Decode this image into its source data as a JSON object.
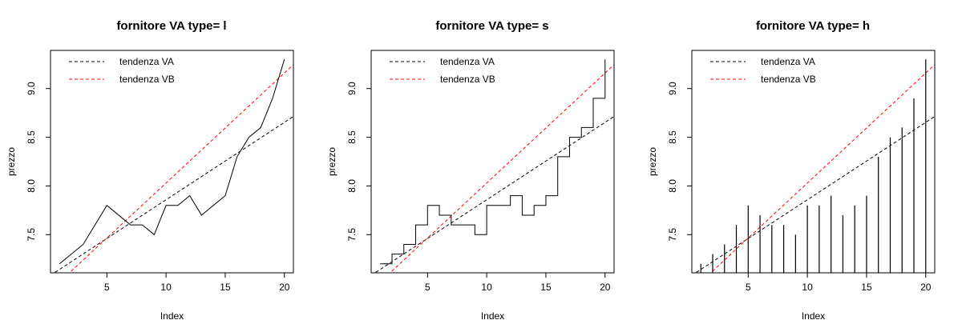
{
  "chart_data": [
    {
      "type": "line",
      "plot_type": "l",
      "title": "fornitore  VA  type= l",
      "xlabel": "Index",
      "ylabel": "prezzo",
      "xlim": [
        0.24,
        20.76
      ],
      "ylim": [
        7.108,
        9.392
      ],
      "x_ticks": [
        5,
        10,
        15,
        20
      ],
      "y_ticks": [
        7.5,
        8.0,
        8.5,
        9.0
      ],
      "y_tick_labels": [
        "7.5",
        "8.0",
        "8.5",
        "9.0"
      ],
      "grid": false,
      "legend_position": "top-left",
      "series": [
        {
          "x": [
            1,
            2,
            3,
            4,
            5,
            6,
            7,
            8,
            9,
            10,
            11,
            12,
            13,
            14,
            15,
            16,
            17,
            18,
            19,
            20
          ],
          "values": [
            7.2,
            7.3,
            7.4,
            7.6,
            7.8,
            7.7,
            7.6,
            7.6,
            7.5,
            7.8,
            7.8,
            7.9,
            7.7,
            7.8,
            7.9,
            8.3,
            8.5,
            8.6,
            8.9,
            9.3
          ],
          "color": "#000000"
        }
      ],
      "trend_lines": [
        {
          "name": "tendenza VA",
          "intercept": 7.063,
          "slope": 0.0795,
          "color": "#000000",
          "dashed": true
        },
        {
          "name": "tendenza VB",
          "intercept": 6.9,
          "slope": 0.113,
          "color": "#ff0000",
          "dashed": true
        }
      ]
    },
    {
      "type": "line",
      "plot_type": "s",
      "title": "fornitore  VA  type= s",
      "xlabel": "Index",
      "ylabel": "prezzo",
      "xlim": [
        0.24,
        20.76
      ],
      "ylim": [
        7.108,
        9.392
      ],
      "x_ticks": [
        5,
        10,
        15,
        20
      ],
      "y_ticks": [
        7.5,
        8.0,
        8.5,
        9.0
      ],
      "y_tick_labels": [
        "7.5",
        "8.0",
        "8.5",
        "9.0"
      ],
      "grid": false,
      "legend_position": "top-left",
      "series": [
        {
          "x": [
            1,
            2,
            3,
            4,
            5,
            6,
            7,
            8,
            9,
            10,
            11,
            12,
            13,
            14,
            15,
            16,
            17,
            18,
            19,
            20
          ],
          "values": [
            7.2,
            7.3,
            7.4,
            7.6,
            7.8,
            7.7,
            7.6,
            7.6,
            7.5,
            7.8,
            7.8,
            7.9,
            7.7,
            7.8,
            7.9,
            8.3,
            8.5,
            8.6,
            8.9,
            9.3
          ],
          "color": "#000000"
        }
      ],
      "trend_lines": [
        {
          "name": "tendenza VA",
          "intercept": 7.063,
          "slope": 0.0795,
          "color": "#000000",
          "dashed": true
        },
        {
          "name": "tendenza VB",
          "intercept": 6.9,
          "slope": 0.113,
          "color": "#ff0000",
          "dashed": true
        }
      ]
    },
    {
      "type": "bar",
      "plot_type": "h",
      "title": "fornitore  VA  type= h",
      "xlabel": "Index",
      "ylabel": "prezzo",
      "xlim": [
        0.24,
        20.76
      ],
      "ylim": [
        7.108,
        9.392
      ],
      "x_ticks": [
        5,
        10,
        15,
        20
      ],
      "y_ticks": [
        7.5,
        8.0,
        8.5,
        9.0
      ],
      "y_tick_labels": [
        "7.5",
        "8.0",
        "8.5",
        "9.0"
      ],
      "grid": false,
      "legend_position": "top-left",
      "series": [
        {
          "x": [
            1,
            2,
            3,
            4,
            5,
            6,
            7,
            8,
            9,
            10,
            11,
            12,
            13,
            14,
            15,
            16,
            17,
            18,
            19,
            20
          ],
          "values": [
            7.2,
            7.3,
            7.4,
            7.6,
            7.8,
            7.7,
            7.6,
            7.6,
            7.5,
            7.8,
            7.8,
            7.9,
            7.7,
            7.8,
            7.9,
            8.3,
            8.5,
            8.6,
            8.9,
            9.3
          ],
          "color": "#000000"
        }
      ],
      "trend_lines": [
        {
          "name": "tendenza VA",
          "intercept": 7.063,
          "slope": 0.0795,
          "color": "#000000",
          "dashed": true
        },
        {
          "name": "tendenza VB",
          "intercept": 6.9,
          "slope": 0.113,
          "color": "#ff0000",
          "dashed": true
        }
      ]
    }
  ]
}
